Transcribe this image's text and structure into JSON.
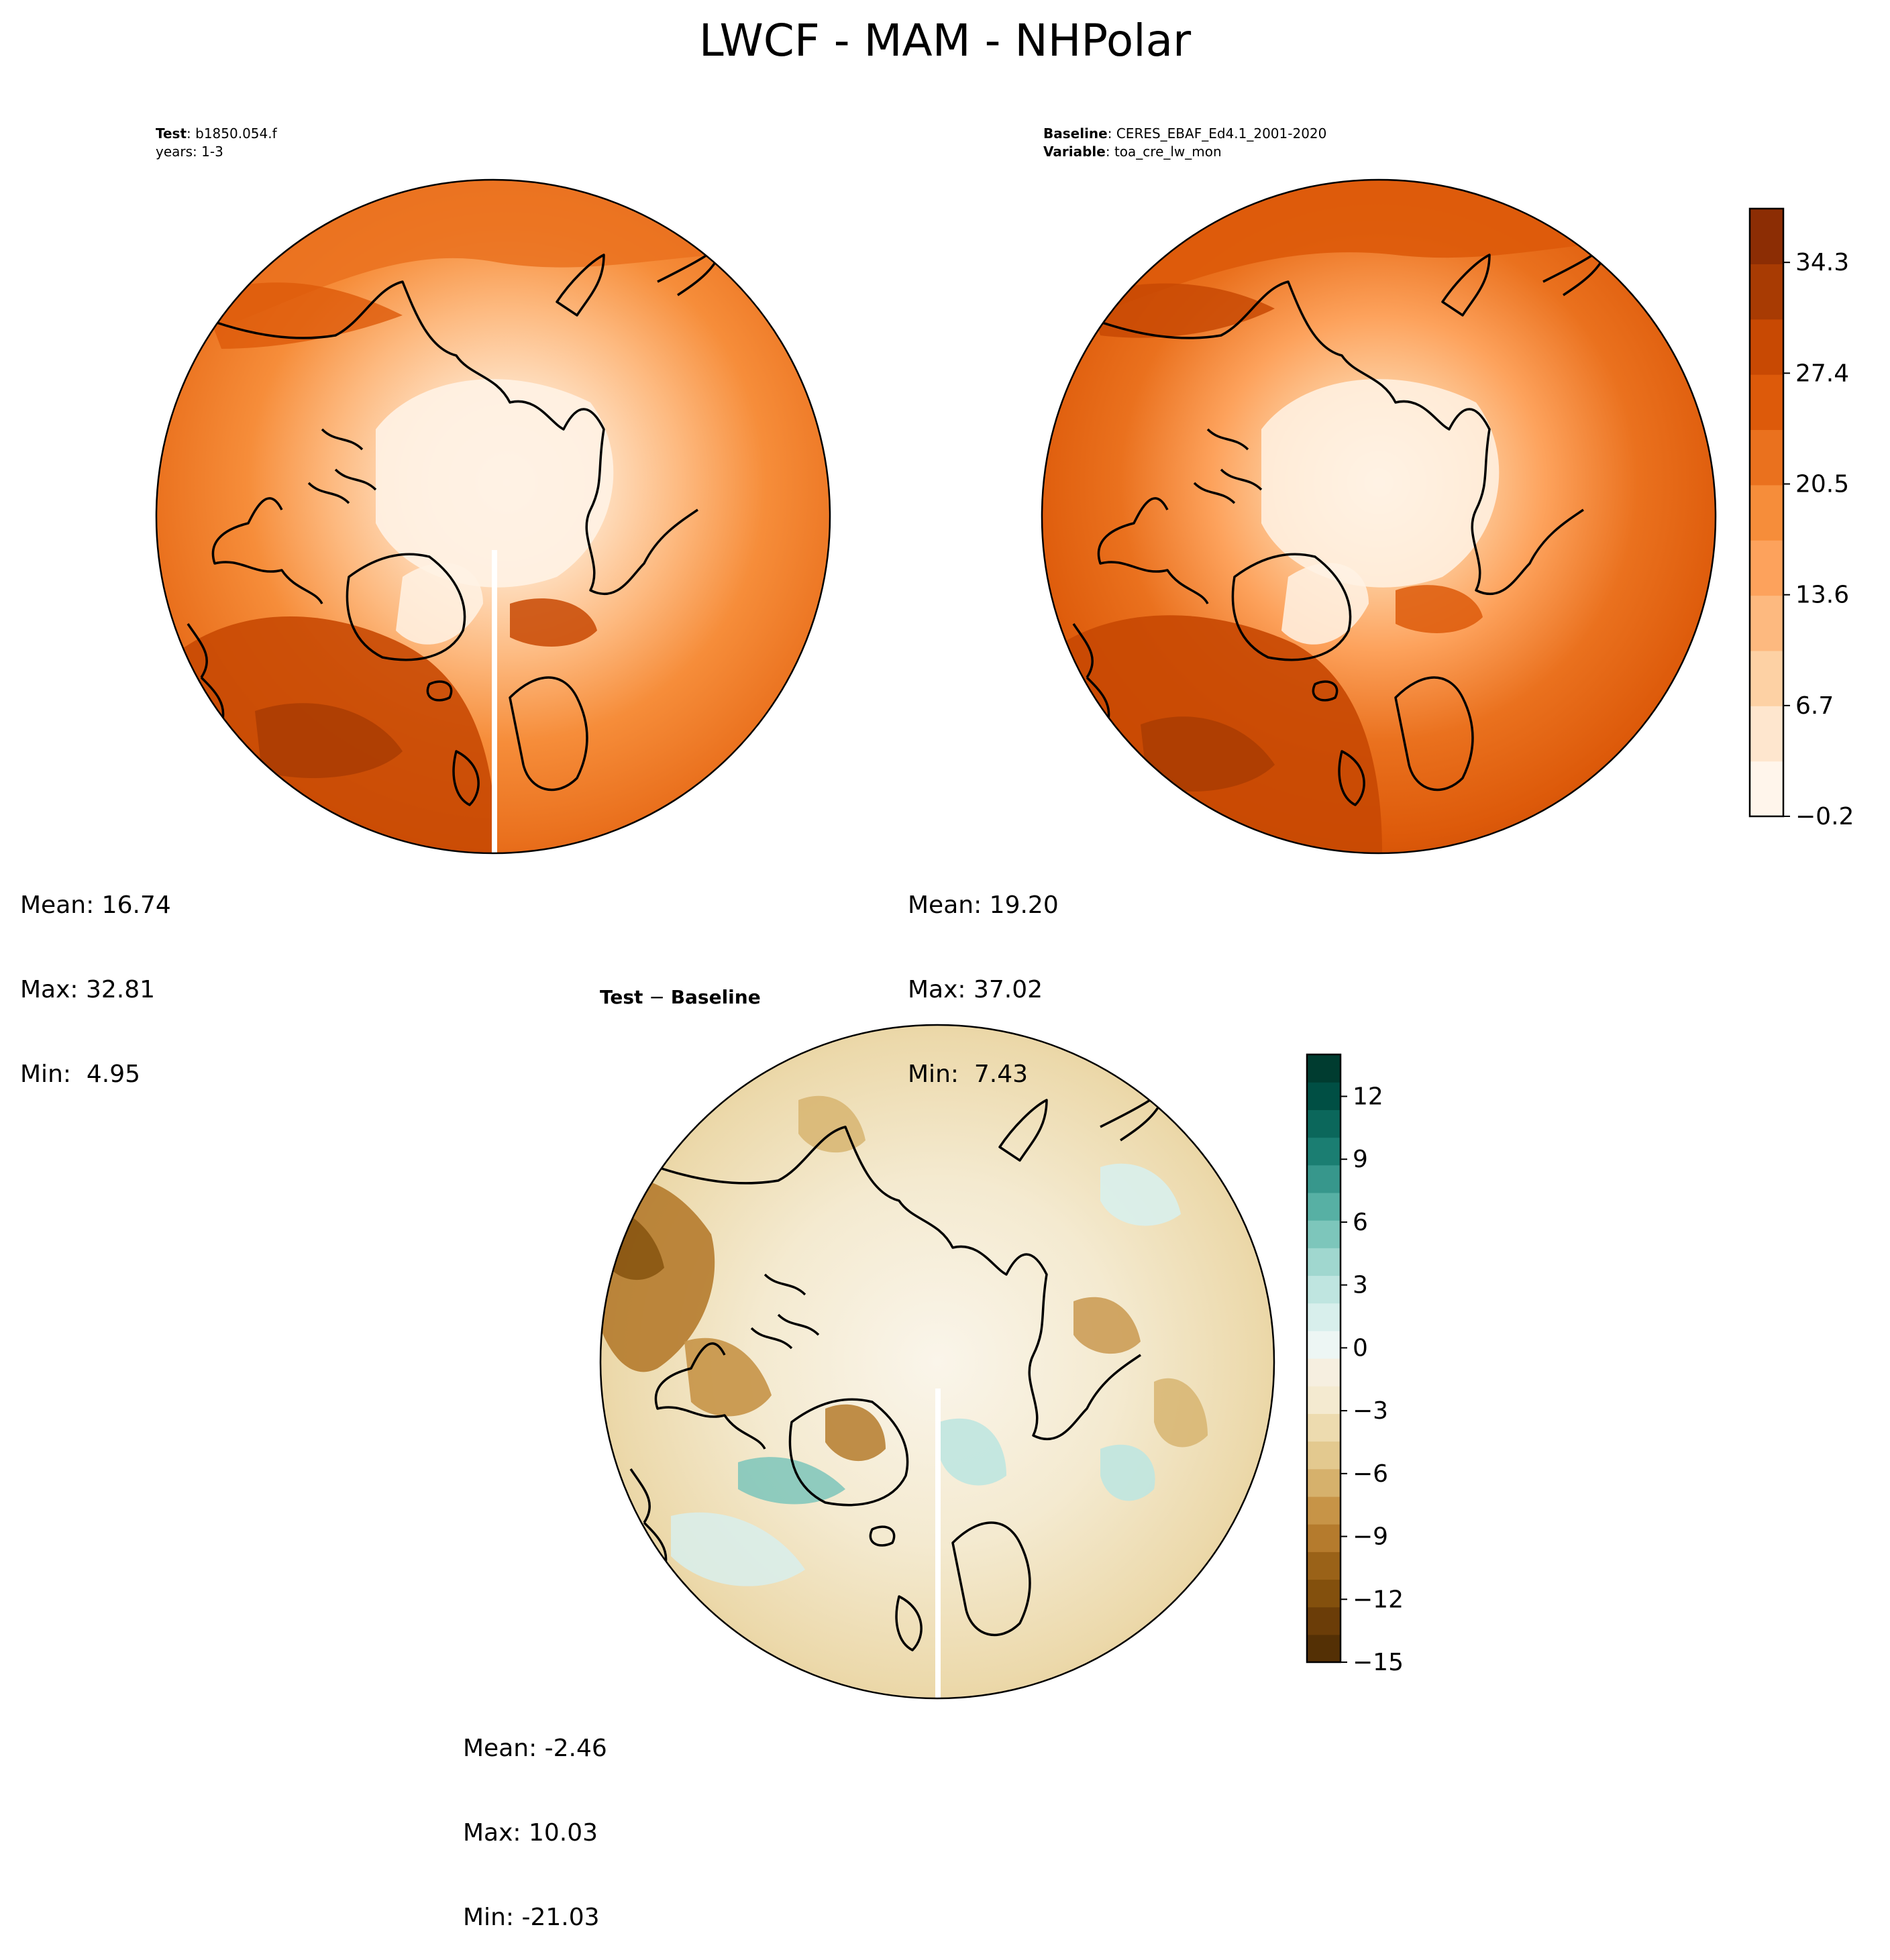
{
  "figure": {
    "title": "LWCF - MAM - NHPolar"
  },
  "panels": {
    "test": {
      "label_key": "Test",
      "label_value": "b1850.054.f",
      "years": "years: 1-3",
      "stats": [
        "Mean: 16.74",
        "Max: 32.81",
        "Min:  4.95"
      ]
    },
    "baseline": {
      "label_key": "Baseline",
      "label_value": "CERES_EBAF_Ed4.1_2001-2020",
      "variable_key": "Variable",
      "variable_value": "toa_cre_lw_mon",
      "stats": [
        "Mean: 19.20",
        "Max: 37.02",
        "Min:  7.43"
      ]
    },
    "diff": {
      "title_a": "Test",
      "title_sep": " − ",
      "title_b": "Baseline",
      "stats": [
        "Mean: -2.46",
        "Max: 10.03",
        "Min: -21.03"
      ]
    }
  },
  "colorbars": {
    "main": {
      "ticks": [
        "34.3",
        "27.4",
        "20.5",
        "13.6",
        "6.7",
        "−0.2"
      ],
      "tick_values": [
        34.3,
        27.4,
        20.5,
        13.6,
        6.7,
        -0.2
      ],
      "range": [
        -0.2,
        37.65
      ],
      "colors": [
        "#fff5eb",
        "#fee6ce",
        "#fdd1a4",
        "#fdb97f",
        "#fda25c",
        "#f68d3a",
        "#ea711e",
        "#dd5a0a",
        "#c84903",
        "#a83b03",
        "#8c2d04"
      ]
    },
    "diff": {
      "ticks": [
        "12",
        "9",
        "6",
        "3",
        "0",
        "−3",
        "−6",
        "−9",
        "−12",
        "−15"
      ],
      "tick_values": [
        12,
        9,
        6,
        3,
        0,
        -3,
        -6,
        -9,
        -12,
        -15
      ],
      "range": [
        -15,
        14
      ],
      "colors_neg": [
        "#543005",
        "#6b3d08",
        "#83500d",
        "#9a6218",
        "#b57b2d",
        "#c79447",
        "#d6b16c",
        "#e3c98f",
        "#eddbaf",
        "#f4ead0",
        "#f6efe0"
      ],
      "colors_pos": [
        "#edf6f4",
        "#d8efec",
        "#bfe5e0",
        "#a0d7cf",
        "#7dc6bb",
        "#57b0a4",
        "#37978c",
        "#1b7e72",
        "#0b675b",
        "#004f44",
        "#003c30"
      ]
    }
  }
}
